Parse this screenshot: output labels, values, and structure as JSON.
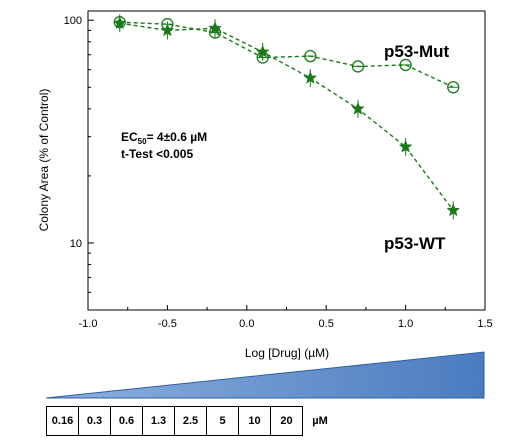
{
  "chart_data": {
    "type": "scatter",
    "xlabel": "Log [Drug] (µM)",
    "ylabel": "Colony Area (% of Control)",
    "xlim": [
      -1.0,
      1.5
    ],
    "ylim": [
      5,
      110
    ],
    "yscale": "log",
    "grid": false,
    "x_ticks": [
      "-1.0",
      "-0.5",
      "0.0",
      "0.5",
      "1.0",
      "1.5"
    ],
    "y_ticks": [
      "10",
      "100"
    ],
    "color": "#1a7a1a",
    "series": [
      {
        "name": "p53-Mut",
        "marker": "circle",
        "x": [
          -0.8,
          -0.5,
          -0.2,
          0.1,
          0.4,
          0.7,
          1.0,
          1.3
        ],
        "y": [
          98,
          96,
          88,
          68,
          69,
          62,
          63,
          50
        ]
      },
      {
        "name": "p53-WT",
        "marker": "star",
        "x": [
          -0.8,
          -0.5,
          -0.2,
          0.1,
          0.4,
          0.7,
          1.0,
          1.3
        ],
        "y": [
          97,
          90,
          92,
          72,
          55,
          40,
          27,
          14
        ]
      }
    ],
    "annotations": {
      "ec50_prefix": "EC",
      "ec50_sub": "50",
      "ec50_rest": "= 4±0.6 µM",
      "ttest": "t-Test <0.005"
    }
  },
  "concentration_table": {
    "values": [
      "0.16",
      "0.3",
      "0.6",
      "1.3",
      "2.5",
      "5",
      "10",
      "20"
    ],
    "unit": "µM"
  },
  "wedge_color": "#4a7cc0"
}
